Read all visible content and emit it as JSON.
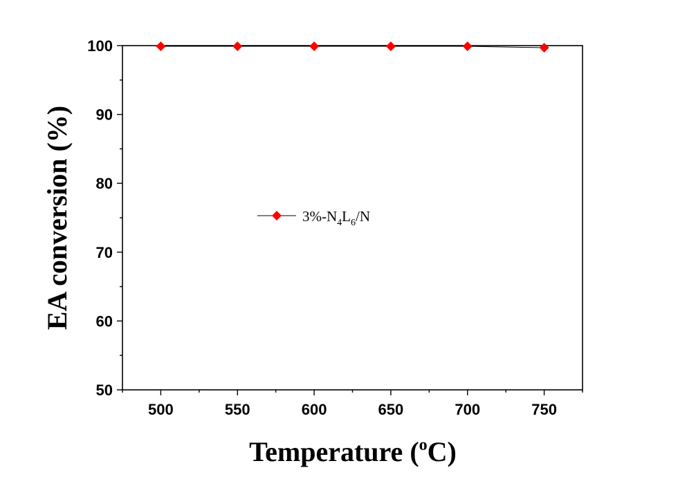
{
  "chart_data": {
    "type": "line",
    "xlabel": "Temperature (",
    "xlabel_sup": "o",
    "xlabel_end": "C)",
    "ylabel": "EA conversion (%)",
    "xlim": [
      475,
      775
    ],
    "ylim": [
      50,
      100
    ],
    "x_ticks": [
      500,
      550,
      600,
      650,
      700,
      750
    ],
    "y_ticks": [
      50,
      60,
      70,
      80,
      90,
      100
    ],
    "x_minor_ticks": [
      475,
      525,
      575,
      625,
      675,
      725,
      775
    ],
    "y_minor_ticks": [
      55,
      65,
      75,
      85,
      95
    ],
    "legend_position": "center-left",
    "series": [
      {
        "name": "3%-N",
        "name_sub1": "4",
        "name_mid": "L",
        "name_sub2": "6",
        "name_end": "/N",
        "color": "#ff0000",
        "line_color": "#000000",
        "marker": "diamond",
        "x": [
          500,
          550,
          600,
          650,
          700,
          750
        ],
        "y": [
          99.9,
          99.9,
          99.9,
          99.9,
          99.9,
          99.7
        ]
      }
    ]
  }
}
